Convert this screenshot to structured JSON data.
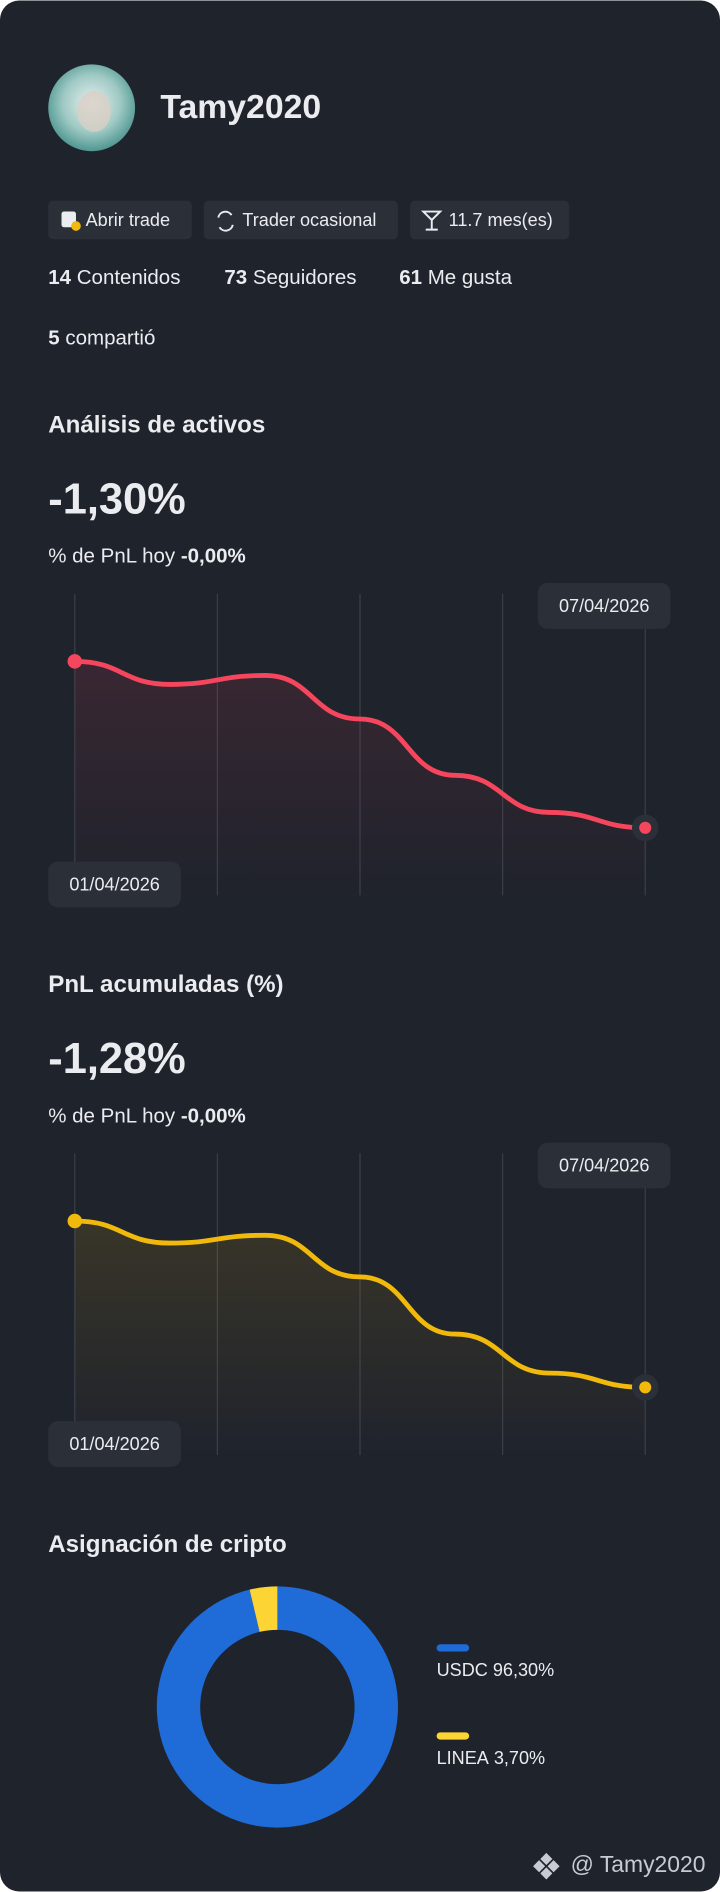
{
  "profile": {
    "name": "Tamy2020",
    "badges": [
      "Abrir trade",
      "Trader ocasional",
      "11.7 mes(es)"
    ],
    "stats": [
      {
        "value": 14,
        "label": "Contenidos"
      },
      {
        "value": 73,
        "label": "Seguidores"
      },
      {
        "value": 61,
        "label": "Me gusta"
      },
      {
        "value": 5,
        "label": "compartió"
      }
    ]
  },
  "chart_data": [
    {
      "type": "line",
      "title": "Análisis de activos",
      "headline": "-1,30%",
      "subtitle": "% de PnL hoy",
      "subtitle_value": "-0,00%",
      "categories": [
        "01/04/2026",
        null,
        null,
        null,
        null,
        null,
        "07/04/2026"
      ],
      "values": [
        0,
        -0.18,
        -0.11,
        -0.45,
        -0.89,
        -1.18,
        -1.3
      ],
      "color": "#f6465d"
    },
    {
      "type": "line",
      "title": "PnL acumuladas (%)",
      "headline": "-1,28%",
      "subtitle": "% de PnL hoy",
      "subtitle_value": "-0,00%",
      "categories": [
        "01/04/2026",
        null,
        null,
        null,
        null,
        null,
        "07/04/2026"
      ],
      "values": [
        0,
        -0.17,
        -0.11,
        -0.43,
        -0.87,
        -1.17,
        -1.28
      ],
      "color": "#f0b90b"
    },
    {
      "type": "pie",
      "title": "Asignación de cripto",
      "categories": [
        "USDC",
        "LINEA"
      ],
      "values": [
        96.3,
        3.7
      ],
      "value_labels": [
        "96,30%",
        "3,70%"
      ],
      "colors": [
        "#1f6bd8",
        "#fcd535"
      ]
    }
  ],
  "footer": "@ Tamy2020"
}
